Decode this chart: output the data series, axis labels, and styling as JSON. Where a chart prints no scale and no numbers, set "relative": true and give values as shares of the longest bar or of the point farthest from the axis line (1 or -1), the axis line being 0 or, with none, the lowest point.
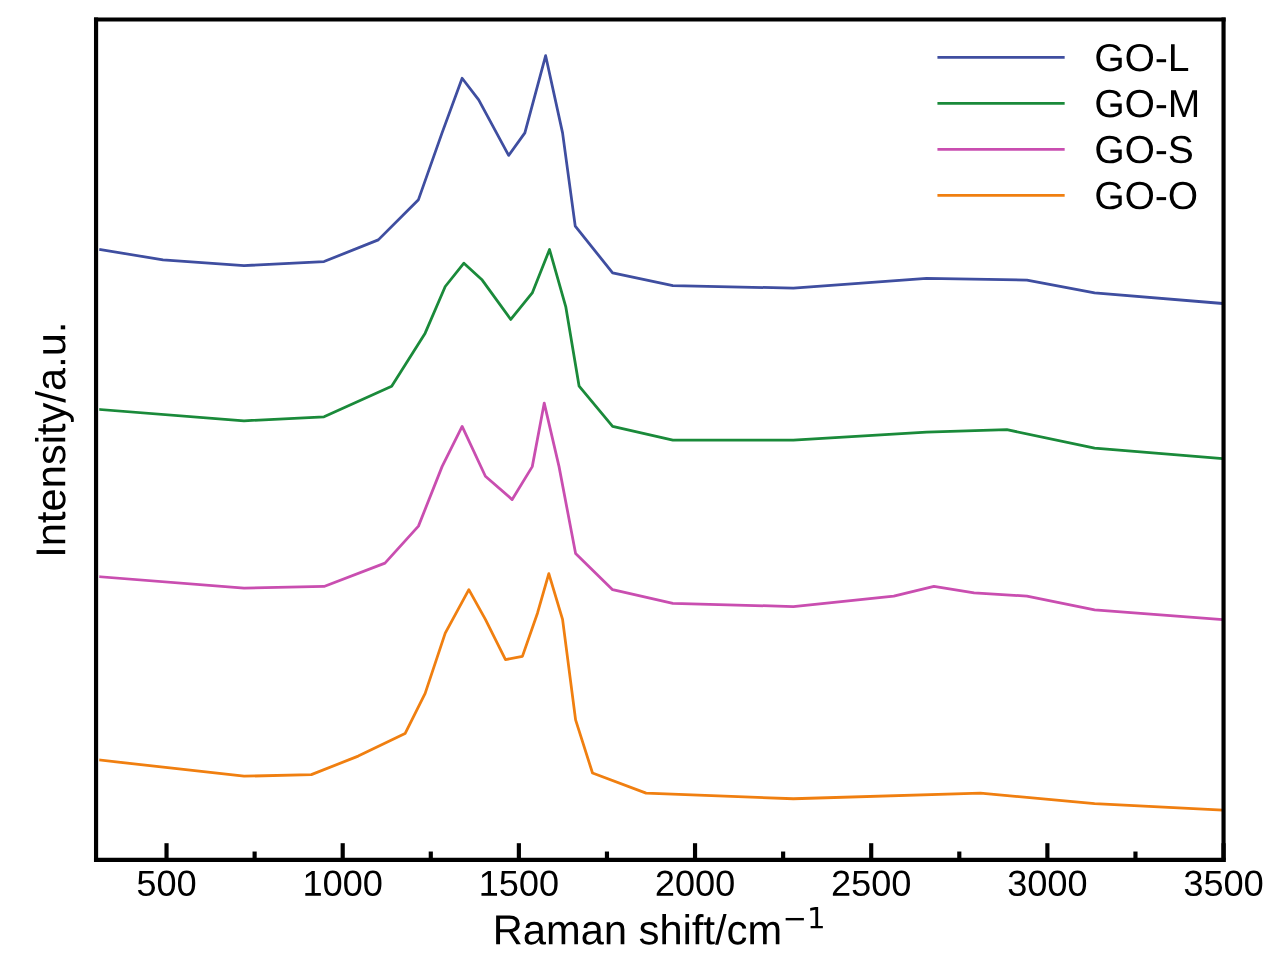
{
  "chart_data": {
    "type": "line",
    "relative": true,
    "xlabel": "Raman shift/cm$^{−1}$",
    "ylabel": "Intensity/a.u.",
    "xlim": [
      300,
      3500
    ],
    "xticks": [
      500,
      {
        "value": 750,
        "label": null
      },
      1000,
      {
        "value": 1250,
        "label": null
      },
      1500,
      {
        "value": 1750,
        "label": null
      },
      2000,
      {
        "value": 2250,
        "label": null
      },
      2500,
      {
        "value": 2750,
        "label": null
      },
      3000,
      {
        "value": 3250,
        "label": null
      },
      3500
    ],
    "legend": "top right",
    "grid": false,
    "marker": "none",
    "line_style": "solid",
    "tick_labels": "x",
    "series": [
      {
        "name": "GO-L",
        "color": "#3f4ea0",
        "x": [
          313,
          490,
          720,
          947,
          1101,
          1215,
          1282,
          1339,
          1386,
          1471,
          1517,
          1576,
          1624,
          1660,
          1766,
          1937,
          2279,
          2657,
          2942,
          3134,
          3494
        ],
        "values": [
          0.759,
          0.746,
          0.739,
          0.744,
          0.771,
          0.821,
          0.904,
          0.972,
          0.945,
          0.876,
          0.904,
          1,
          0.904,
          0.788,
          0.73,
          0.714,
          0.711,
          0.723,
          0.721,
          0.705,
          0.692
        ]
      },
      {
        "name": "GO-M",
        "color": "#1a8a3a",
        "x": [
          313,
          720,
          947,
          1139,
          1234,
          1291,
          1344,
          1396,
          1477,
          1538,
          1587,
          1633,
          1671,
          1766,
          1937,
          2279,
          2657,
          2885,
          3134,
          3494
        ],
        "values": [
          0.56,
          0.546,
          0.551,
          0.589,
          0.655,
          0.713,
          0.742,
          0.721,
          0.672,
          0.705,
          0.759,
          0.688,
          0.589,
          0.539,
          0.522,
          0.522,
          0.532,
          0.535,
          0.512,
          0.499
        ]
      },
      {
        "name": "GO-S",
        "color": "#c94eb0",
        "x": [
          313,
          720,
          947,
          1120,
          1215,
          1282,
          1339,
          1405,
          1481,
          1538,
          1572,
          1614,
          1661,
          1766,
          1937,
          2279,
          2564,
          2678,
          2792,
          2942,
          3134,
          3494
        ],
        "values": [
          0.352,
          0.338,
          0.34,
          0.369,
          0.415,
          0.489,
          0.539,
          0.477,
          0.448,
          0.489,
          0.568,
          0.489,
          0.381,
          0.336,
          0.319,
          0.315,
          0.328,
          0.34,
          0.332,
          0.328,
          0.311,
          0.299
        ]
      },
      {
        "name": "GO-O",
        "color": "#f07f10",
        "x": [
          313,
          720,
          911,
          1044,
          1177,
          1234,
          1291,
          1358,
          1405,
          1462,
          1510,
          1553,
          1585,
          1624,
          1661,
          1709,
          1861,
          2279,
          2810,
          3134,
          3494
        ],
        "values": [
          0.124,
          0.104,
          0.106,
          0.129,
          0.157,
          0.207,
          0.282,
          0.336,
          0.299,
          0.249,
          0.253,
          0.307,
          0.356,
          0.299,
          0.174,
          0.108,
          0.083,
          0.076,
          0.083,
          0.07,
          0.062
        ]
      }
    ]
  }
}
